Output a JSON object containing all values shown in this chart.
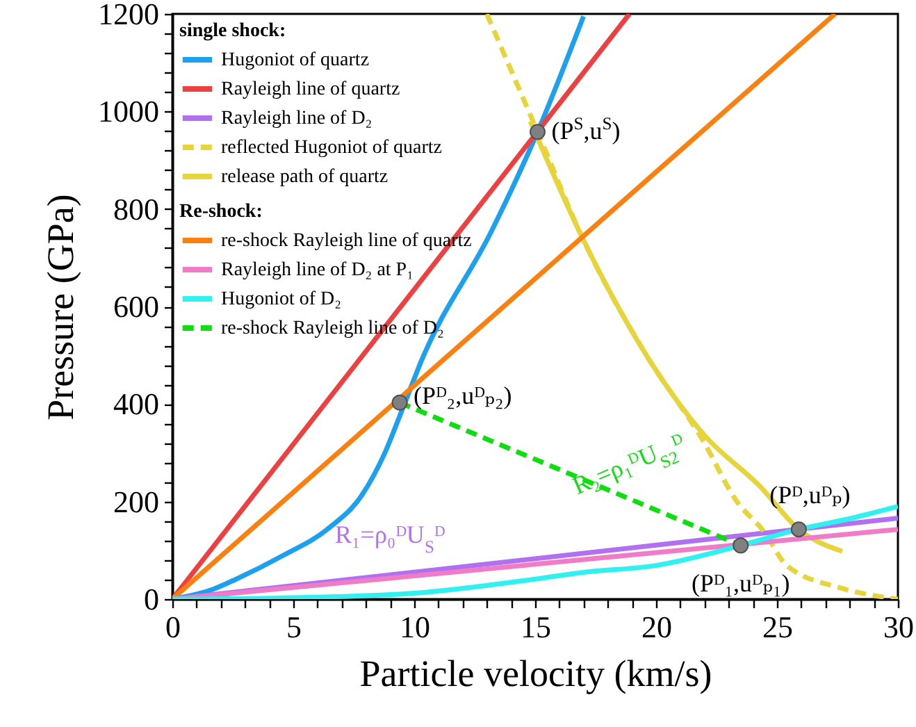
{
  "chart_data": {
    "type": "line",
    "xlabel": "Particle velocity (km/s)",
    "ylabel": "Pressure (GPa)",
    "legend_title": [
      "single shock:",
      "Re-shock:"
    ],
    "legend": "top left",
    "grid": false,
    "marker": "none",
    "xlim": [
      0,
      30
    ],
    "ylim": [
      0,
      1200
    ],
    "xticks": [
      0,
      {
        "value": 1,
        "label": null
      },
      {
        "value": 2,
        "label": null
      },
      {
        "value": 3,
        "label": null
      },
      {
        "value": 4,
        "label": null
      },
      5,
      {
        "value": 6,
        "label": null
      },
      {
        "value": 7,
        "label": null
      },
      {
        "value": 8,
        "label": null
      },
      {
        "value": 9,
        "label": null
      },
      10,
      {
        "value": 11,
        "label": null
      },
      {
        "value": 12,
        "label": null
      },
      {
        "value": 13,
        "label": null
      },
      {
        "value": 14,
        "label": null
      },
      15,
      {
        "value": 16,
        "label": null
      },
      {
        "value": 17,
        "label": null
      },
      {
        "value": 18,
        "label": null
      },
      {
        "value": 19,
        "label": null
      },
      20,
      {
        "value": 21,
        "label": null
      },
      {
        "value": 22,
        "label": null
      },
      {
        "value": 23,
        "label": null
      },
      {
        "value": 24,
        "label": null
      },
      25,
      {
        "value": 26,
        "label": null
      },
      {
        "value": 27,
        "label": null
      },
      {
        "value": 28,
        "label": null
      },
      {
        "value": 29,
        "label": null
      },
      30
    ],
    "yticks": [
      0,
      {
        "value": 40,
        "label": null
      },
      {
        "value": 80,
        "label": null
      },
      {
        "value": 120,
        "label": null
      },
      {
        "value": 160,
        "label": null
      },
      200,
      {
        "value": 240,
        "label": null
      },
      {
        "value": 280,
        "label": null
      },
      {
        "value": 320,
        "label": null
      },
      {
        "value": 360,
        "label": null
      },
      400,
      {
        "value": 440,
        "label": null
      },
      {
        "value": 480,
        "label": null
      },
      {
        "value": 520,
        "label": null
      },
      {
        "value": 560,
        "label": null
      },
      600,
      {
        "value": 640,
        "label": null
      },
      {
        "value": 680,
        "label": null
      },
      {
        "value": 720,
        "label": null
      },
      {
        "value": 760,
        "label": null
      },
      800,
      {
        "value": 840,
        "label": null
      },
      {
        "value": 880,
        "label": null
      },
      {
        "value": 920,
        "label": null
      },
      {
        "value": 960,
        "label": null
      },
      1000,
      {
        "value": 1040,
        "label": null
      },
      {
        "value": 1080,
        "label": null
      },
      {
        "value": 1120,
        "label": null
      },
      {
        "value": 1160,
        "label": null
      },
      1200
    ],
    "series": [
      {
        "name": "Hugoniot of quartz",
        "line_style": "solid",
        "color": "#1ea0f0",
        "x": [
          0,
          1.67,
          2.64,
          4.56,
          6.48,
          7.82,
          8.77,
          9.54,
          10.3,
          13.2,
          14.3,
          15.1,
          17.0
        ],
        "values": [
          0,
          20,
          41,
          89,
          146,
          212,
          298,
          393,
          489,
          755,
          869,
          958,
          1195
        ]
      },
      {
        "name": "Rayleigh line of quartz",
        "line_style": "solid",
        "color": "#ee4040",
        "x": [
          0,
          18.9
        ],
        "values": [
          0,
          1200
        ]
      },
      {
        "name": "Rayleigh line of D₂",
        "line_style": "solid",
        "color": "#b070f0",
        "x": [
          0,
          30
        ],
        "values": [
          0,
          166
        ]
      },
      {
        "name": "reflected Hugoniot of quartz",
        "line_style": "dashed",
        "color": "#e6d43a",
        "x": [
          13.0,
          15.1,
          17,
          19.5,
          22,
          23.3,
          24.5,
          25.4,
          27.7,
          30
        ],
        "values": [
          1200,
          958,
          736,
          508,
          320,
          203,
          136,
          69,
          22,
          0
        ]
      },
      {
        "name": "release path of quartz",
        "line_style": "solid",
        "color": "#e6d43a",
        "x": [
          14.8,
          17,
          19.5,
          22,
          24.3,
          25.9,
          27.7
        ],
        "values": [
          980,
          736,
          508,
          336,
          231,
          143,
          98
        ]
      },
      {
        "type": "scatter",
        "marker": "circle",
        "color": "#808080",
        "x": [
          15.1,
          9.4,
          23.5,
          25.9
        ],
        "values": [
          958,
          403,
          110,
          143
        ]
      },
      {
        "name": "re-shock Rayleigh line of quartz",
        "line_style": "solid",
        "color": "#fb8010",
        "x": [
          0,
          27.4
        ],
        "values": [
          0,
          1200
        ]
      },
      {
        "name": "Rayleigh line of D₂ at P₁",
        "line_style": "solid",
        "color": "#f07cc8",
        "x": [
          0,
          30
        ],
        "values": [
          0,
          143
        ]
      },
      {
        "name": "Hugoniot of D₂",
        "line_style": "solid",
        "color": "#30f0f0",
        "x": [
          0,
          5,
          10,
          15,
          17,
          20,
          23.5,
          25.9,
          28,
          30
        ],
        "values": [
          0,
          3,
          12,
          41,
          55,
          69,
          110,
          143,
          165,
          190
        ]
      },
      {
        "name": "re-shock Rayleigh line of D₂",
        "line_style": "dashed",
        "color": "#10dd10",
        "x": [
          9.4,
          23.5
        ],
        "values": [
          403,
          110
        ]
      }
    ],
    "annotations": [
      {
        "text": "(P$^{S}$,u$^{S}$)",
        "x": 15.1,
        "y": 958
      },
      {
        "text": "(Pᴰ₂,uᴰₚ₂)",
        "x": 9.4,
        "y": 403
      },
      {
        "text": "(Pᴰ₁,uᴰₚ₁)",
        "x": 23.5,
        "y": 110
      },
      {
        "text": "(Pᴰ,uᴰₚ)",
        "x": 25.9,
        "y": 143
      },
      {
        "text": "R₁=ρ₀ᴰU$_{S}$ᴰ",
        "x": 9,
        "y": 50
      },
      {
        "text": "R₂=ρ₁ᴰU$_{S2}$ᴰ",
        "x": 19,
        "y": 203
      }
    ]
  }
}
